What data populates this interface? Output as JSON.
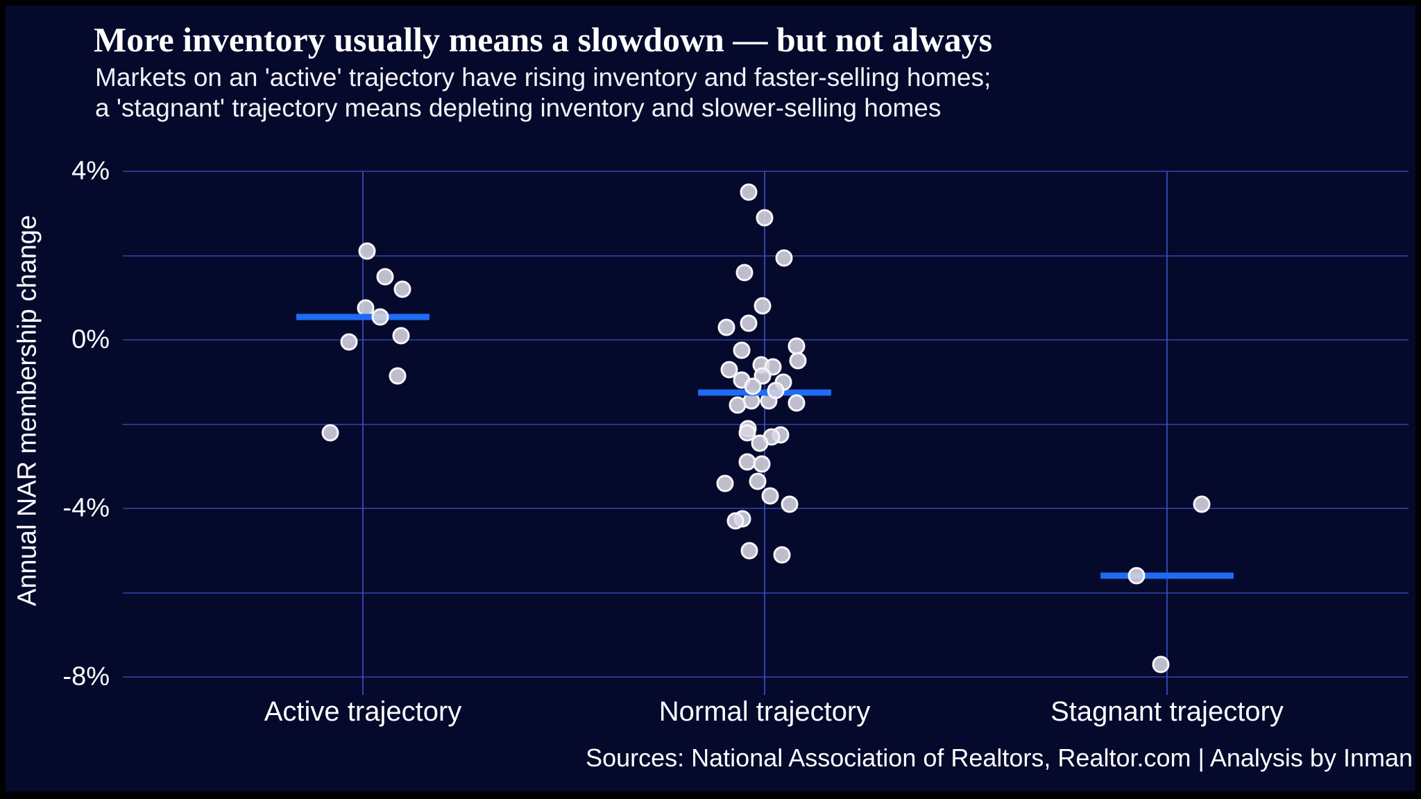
{
  "header": {
    "title": "More inventory usually means a slowdown — but not always",
    "subtitle_line1": "Markets on an 'active' trajectory have rising inventory and faster-selling homes;",
    "subtitle_line2": "a 'stagnant' trajectory means depleting inventory and slower-selling homes"
  },
  "footer": {
    "source": "Sources: National Association of Realtors, Realtor.com | Analysis by Inman"
  },
  "chart_data": {
    "type": "scatter",
    "title": "More inventory usually means a slowdown — but not always",
    "xlabel": "",
    "ylabel": "Annual NAR membership change",
    "ylim": [
      -8,
      4
    ],
    "grid": true,
    "axis": {
      "gridlines": [
        4,
        2,
        0,
        -2,
        -4,
        -6,
        -8
      ],
      "ticks": [
        {
          "v": 4,
          "label": "4%"
        },
        {
          "v": 0,
          "label": "0%"
        },
        {
          "v": -4,
          "label": "-4%"
        },
        {
          "v": -8,
          "label": "-8%"
        }
      ]
    },
    "categories": [
      "Active trajectory",
      "Normal trajectory",
      "Stagnant trajectory"
    ],
    "series": [
      {
        "name": "Active trajectory",
        "mean": 0.55,
        "points": [
          [
            2.1,
            6
          ],
          [
            1.5,
            32
          ],
          [
            1.2,
            57
          ],
          [
            0.75,
            4
          ],
          [
            0.55,
            25,
            1
          ],
          [
            0.1,
            55
          ],
          [
            -0.05,
            -20
          ],
          [
            -0.85,
            50
          ],
          [
            -2.2,
            -47
          ]
        ]
      },
      {
        "name": "Normal trajectory",
        "mean": -1.25,
        "points": [
          [
            3.5,
            -23
          ],
          [
            2.9,
            0
          ],
          [
            1.95,
            28
          ],
          [
            1.6,
            -29
          ],
          [
            0.8,
            -3
          ],
          [
            0.4,
            -23
          ],
          [
            0.3,
            -55
          ],
          [
            -0.15,
            46
          ],
          [
            -0.25,
            -33
          ],
          [
            -0.5,
            48
          ],
          [
            -0.6,
            -5
          ],
          [
            -0.65,
            12
          ],
          [
            -0.7,
            -51
          ],
          [
            -0.85,
            -3,
            1
          ],
          [
            -0.95,
            -33,
            1
          ],
          [
            -1.0,
            27,
            1
          ],
          [
            -1.1,
            -17,
            1
          ],
          [
            -1.2,
            16,
            1
          ],
          [
            -1.45,
            -19
          ],
          [
            -1.45,
            6
          ],
          [
            -1.5,
            46,
            1
          ],
          [
            -1.55,
            -39
          ],
          [
            -2.1,
            -24
          ],
          [
            -2.2,
            -25
          ],
          [
            -2.25,
            23
          ],
          [
            -2.3,
            10
          ],
          [
            -2.45,
            -7
          ],
          [
            -2.9,
            -25
          ],
          [
            -2.95,
            -4
          ],
          [
            -3.35,
            -10
          ],
          [
            -3.4,
            -57
          ],
          [
            -3.7,
            8
          ],
          [
            -3.9,
            36
          ],
          [
            -4.25,
            -32
          ],
          [
            -4.3,
            -42
          ],
          [
            -5.0,
            -22
          ],
          [
            -5.1,
            25
          ]
        ]
      },
      {
        "name": "Stagnant trajectory",
        "mean": -5.6,
        "points": [
          [
            -3.9,
            50
          ],
          [
            -5.6,
            -44,
            1
          ],
          [
            -7.7,
            -9
          ]
        ]
      }
    ],
    "style": {
      "background": "#050A2C",
      "frame_border": "#000000",
      "gridline_h": "#3A4EBE",
      "gridline_v": "#4058D2",
      "dot_fill": "#D8D6E2",
      "dot_stroke": "#F6F5FA",
      "mean_line": "#1E6CF3",
      "text": "#FFFFFF"
    }
  }
}
